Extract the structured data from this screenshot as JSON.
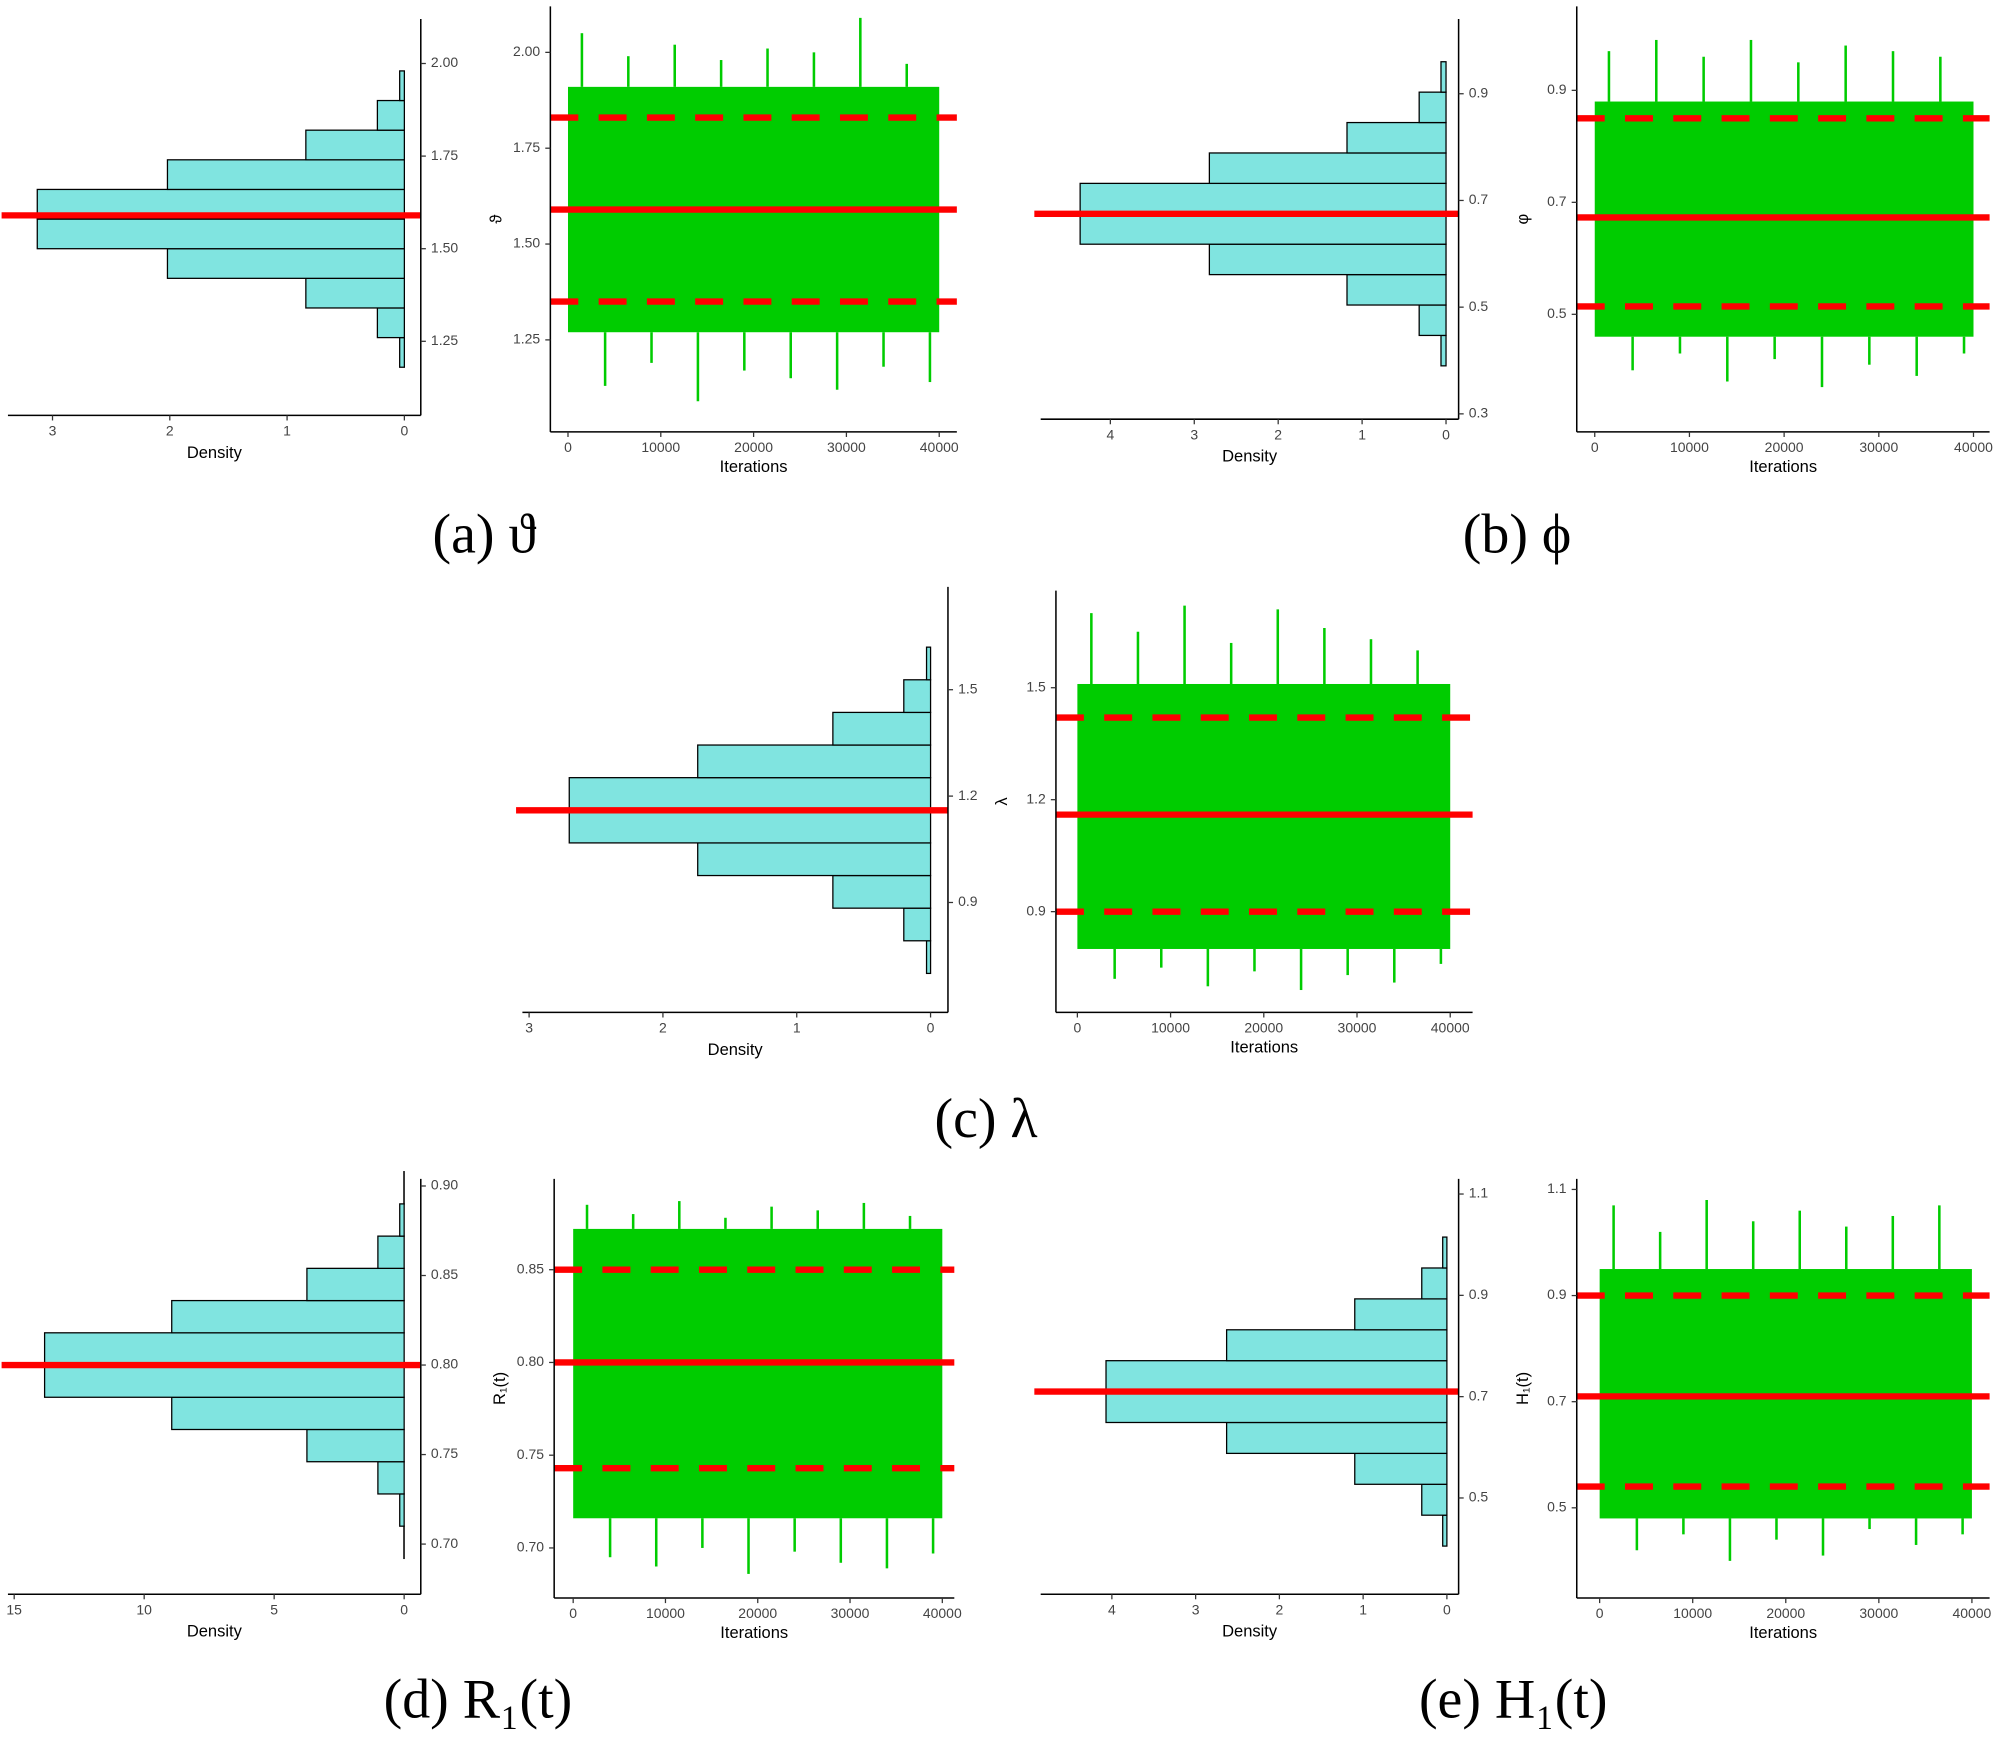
{
  "captions": [
    "(a) ϑ",
    "(b) ϕ",
    "(c) λ",
    "(d) R₁(t)",
    "(e) H₁(t)"
  ],
  "chart_data": [
    {
      "type": "histogram",
      "orientation": "horizontal",
      "xlabel": "Density",
      "bins": [
        1.1,
        1.18,
        1.26,
        1.34,
        1.42,
        1.5,
        1.58,
        1.66,
        1.74,
        1.82,
        1.9,
        1.98,
        2.06
      ],
      "values": [
        0.0,
        0.04,
        0.23,
        0.84,
        2.02,
        3.13,
        3.13,
        2.02,
        0.84,
        0.23,
        0.04,
        0.0
      ],
      "color": "#80e4e0",
      "mean": 1.59,
      "mean_color": "#ff0000",
      "xlim": [
        3.38,
        -0.14
      ],
      "xticks": [
        3,
        2,
        1,
        0
      ],
      "ylim": [
        1.05,
        2.12
      ],
      "yticks": [
        {
          "value": 2,
          "label": "2.00"
        },
        1.75,
        {
          "value": 1.5,
          "label": "1.50"
        },
        1.25
      ]
    },
    {
      "type": "trace",
      "xlabel": "Iterations",
      "ylabel": "ϑ",
      "color": "#00cc00",
      "band": [
        1.27,
        1.91
      ],
      "band_x": [
        0,
        40000
      ],
      "x": [
        1500,
        4000,
        6500,
        9000,
        11500,
        14000,
        16500,
        19000,
        21500,
        24000,
        26500,
        29000,
        31500,
        34000,
        36500,
        39000
      ],
      "values": [
        2.05,
        1.13,
        1.99,
        1.19,
        2.02,
        1.09,
        1.98,
        1.17,
        2.01,
        1.15,
        2.0,
        1.12,
        2.09,
        1.18,
        1.97,
        1.14
      ],
      "reference_color": "#ff0000",
      "reference_lines": [
        {
          "value": 1.83,
          "style": "dashed"
        },
        {
          "value": 1.59,
          "style": "solid"
        },
        {
          "value": 1.35,
          "style": "dashed"
        }
      ],
      "xlim": [
        -1900,
        41900
      ],
      "xticks": [
        0,
        10000,
        20000,
        30000,
        40000
      ],
      "ylim": [
        1.01,
        2.12
      ],
      "yticks": [
        {
          "value": 2,
          "label": "2.00"
        },
        1.75,
        {
          "value": 1.5,
          "label": "1.50"
        },
        1.25
      ]
    },
    {
      "type": "histogram",
      "orientation": "horizontal",
      "xlabel": "Density",
      "bins": [
        0.333,
        0.39,
        0.447,
        0.504,
        0.561,
        0.618,
        0.675,
        0.732,
        0.789,
        0.846,
        0.903,
        0.96,
        1.017
      ],
      "values": [
        0.0,
        0.06,
        0.32,
        1.18,
        2.82,
        4.36,
        4.36,
        2.82,
        1.18,
        0.32,
        0.06,
        0.0
      ],
      "color": "#80e4e0",
      "mean": 0.675,
      "mean_color": "#ff0000",
      "xlim": [
        4.83,
        -0.15
      ],
      "xticks": [
        4,
        3,
        2,
        1,
        0
      ],
      "ylim": [
        0.29,
        1.04
      ],
      "yticks": [
        0.9,
        0.7,
        0.5,
        0.3
      ]
    },
    {
      "type": "trace",
      "xlabel": "Iterations",
      "ylabel": "φ",
      "color": "#00cc00",
      "band": [
        0.46,
        0.88
      ],
      "band_x": [
        0,
        40000
      ],
      "x": [
        1500,
        4000,
        6500,
        9000,
        11500,
        14000,
        16500,
        19000,
        21500,
        24000,
        26500,
        29000,
        31500,
        34000,
        36500,
        39000
      ],
      "values": [
        0.97,
        0.4,
        0.99,
        0.43,
        0.96,
        0.38,
        0.99,
        0.42,
        0.95,
        0.37,
        0.98,
        0.41,
        0.97,
        0.39,
        0.96,
        0.43
      ],
      "reference_color": "#ff0000",
      "reference_lines": [
        {
          "value": 0.85,
          "style": "dashed"
        },
        {
          "value": 0.673,
          "style": "solid"
        },
        {
          "value": 0.514,
          "style": "dashed"
        }
      ],
      "xlim": [
        -1900,
        41700
      ],
      "xticks": [
        0,
        10000,
        20000,
        30000,
        40000
      ],
      "ylim": [
        0.29,
        1.05
      ],
      "yticks": [
        0.9,
        0.7,
        0.5
      ]
    },
    {
      "type": "histogram",
      "orientation": "horizontal",
      "xlabel": "Density",
      "bins": [
        0.608,
        0.7,
        0.792,
        0.884,
        0.976,
        1.068,
        1.16,
        1.252,
        1.344,
        1.436,
        1.528,
        1.62,
        1.712
      ],
      "values": [
        0.0,
        0.03,
        0.2,
        0.73,
        1.74,
        2.7,
        2.7,
        1.74,
        0.73,
        0.2,
        0.03,
        0.0
      ],
      "color": "#80e4e0",
      "mean": 1.16,
      "mean_color": "#ff0000",
      "xlim": [
        3.05,
        -0.13
      ],
      "xticks": [
        3,
        2,
        1,
        0
      ],
      "ylim": [
        0.59,
        1.79
      ],
      "yticks": [
        1.5,
        1.2,
        0.9
      ]
    },
    {
      "type": "trace",
      "xlabel": "Iterations",
      "ylabel": "λ",
      "color": "#00cc00",
      "band": [
        0.8,
        1.51
      ],
      "band_x": [
        0,
        40000
      ],
      "x": [
        1500,
        4000,
        6500,
        9000,
        11500,
        14000,
        16500,
        19000,
        21500,
        24000,
        26500,
        29000,
        31500,
        34000,
        36500,
        39000
      ],
      "values": [
        1.7,
        0.72,
        1.65,
        0.75,
        1.72,
        0.7,
        1.62,
        0.74,
        1.71,
        0.69,
        1.66,
        0.73,
        1.63,
        0.71,
        1.6,
        0.76
      ],
      "reference_color": "#ff0000",
      "reference_lines": [
        {
          "value": 1.42,
          "style": "dashed"
        },
        {
          "value": 1.16,
          "style": "solid"
        },
        {
          "value": 0.9,
          "style": "dashed"
        }
      ],
      "xlim": [
        -2300,
        42400
      ],
      "xticks": [
        0,
        10000,
        20000,
        30000,
        40000
      ],
      "ylim": [
        0.63,
        1.76
      ],
      "yticks": [
        1.5,
        1.2,
        0.9
      ]
    },
    {
      "type": "histogram",
      "orientation": "horizontal",
      "xlabel": "Density",
      "bins": [
        0.692,
        0.71,
        0.728,
        0.746,
        0.764,
        0.782,
        0.8,
        0.818,
        0.836,
        0.854,
        0.872,
        0.89,
        0.908
      ],
      "values": [
        0.01,
        0.17,
        1.01,
        3.74,
        8.94,
        13.83,
        13.83,
        8.94,
        3.74,
        1.01,
        0.17,
        0.01
      ],
      "color": "#80e4e0",
      "mean": 0.8,
      "mean_color": "#ff0000",
      "xlim": [
        15.24,
        -0.64
      ],
      "xticks": [
        15,
        10,
        5,
        0
      ],
      "ylim": [
        0.672,
        0.904
      ],
      "yticks": [
        {
          "value": 0.9,
          "label": "0.90"
        },
        0.85,
        {
          "value": 0.8,
          "label": "0.80"
        },
        0.75,
        {
          "value": 0.7,
          "label": "0.70"
        }
      ]
    },
    {
      "type": "trace",
      "xlabel": "Iterations",
      "ylabel": "R₁(t)",
      "color": "#00cc00",
      "band": [
        0.716,
        0.872
      ],
      "band_x": [
        0,
        40000
      ],
      "x": [
        1500,
        4000,
        6500,
        9000,
        11500,
        14000,
        16500,
        19000,
        21500,
        24000,
        26500,
        29000,
        31500,
        34000,
        36500,
        39000
      ],
      "values": [
        0.885,
        0.695,
        0.88,
        0.69,
        0.887,
        0.7,
        0.878,
        0.686,
        0.884,
        0.698,
        0.882,
        0.692,
        0.886,
        0.689,
        0.879,
        0.697
      ],
      "reference_color": "#ff0000",
      "reference_lines": [
        {
          "value": 0.85,
          "style": "dashed"
        },
        {
          "value": 0.8,
          "style": "solid"
        },
        {
          "value": 0.743,
          "style": "dashed"
        }
      ],
      "xlim": [
        -2060,
        41300
      ],
      "xticks": [
        0,
        10000,
        20000,
        30000,
        40000
      ],
      "ylim": [
        0.673,
        0.899
      ],
      "yticks": [
        0.85,
        {
          "value": 0.8,
          "label": "0.80"
        },
        0.75,
        {
          "value": 0.7,
          "label": "0.70"
        }
      ]
    },
    {
      "type": "histogram",
      "orientation": "horizontal",
      "xlabel": "Density",
      "bins": [
        0.344,
        0.405,
        0.466,
        0.527,
        0.588,
        0.649,
        0.71,
        0.771,
        0.832,
        0.893,
        0.954,
        1.015,
        1.076
      ],
      "values": [
        0.0,
        0.05,
        0.3,
        1.1,
        2.63,
        4.07,
        4.07,
        2.63,
        1.1,
        0.3,
        0.05,
        0.0
      ],
      "color": "#80e4e0",
      "mean": 0.71,
      "mean_color": "#ff0000",
      "xlim": [
        4.85,
        -0.14
      ],
      "xticks": [
        4,
        3,
        2,
        1,
        0
      ],
      "ylim": [
        0.31,
        1.13
      ],
      "yticks": [
        1.1,
        0.9,
        0.7,
        0.5
      ]
    },
    {
      "type": "trace",
      "xlabel": "Iterations",
      "ylabel": "H₁(t)",
      "color": "#00cc00",
      "band": [
        0.48,
        0.95
      ],
      "band_x": [
        0,
        40000
      ],
      "x": [
        1500,
        4000,
        6500,
        9000,
        11500,
        14000,
        16500,
        19000,
        21500,
        24000,
        26500,
        29000,
        31500,
        34000,
        36500,
        39000
      ],
      "values": [
        1.07,
        0.42,
        1.02,
        0.45,
        1.08,
        0.4,
        1.04,
        0.44,
        1.06,
        0.41,
        1.03,
        0.46,
        1.05,
        0.43,
        1.07,
        0.45
      ],
      "reference_color": "#ff0000",
      "reference_lines": [
        {
          "value": 0.9,
          "style": "dashed"
        },
        {
          "value": 0.71,
          "style": "solid"
        },
        {
          "value": 0.54,
          "style": "dashed"
        }
      ],
      "xlim": [
        -2460,
        41900
      ],
      "xticks": [
        0,
        10000,
        20000,
        30000,
        40000
      ],
      "ylim": [
        0.33,
        1.12
      ],
      "yticks": [
        1.1,
        0.9,
        0.7,
        0.5
      ]
    }
  ]
}
